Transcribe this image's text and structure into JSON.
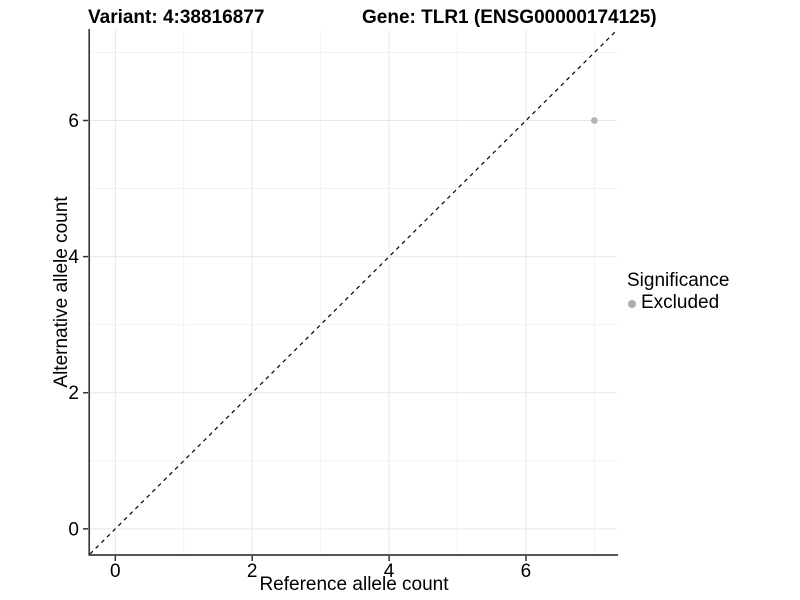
{
  "titles": {
    "variant": "Variant: 4:38816877",
    "gene": "Gene: TLR1 (ENSG00000174125)"
  },
  "chart_data": {
    "type": "scatter",
    "xlabel": "Reference allele count",
    "ylabel": "Alternative allele count",
    "xlim": [
      -0.37,
      7.33
    ],
    "ylim": [
      -0.37,
      7.33
    ],
    "xticks": [
      0,
      2,
      4,
      6
    ],
    "yticks": [
      0,
      2,
      4,
      6
    ],
    "xticks_minor": [
      1,
      3,
      5,
      7
    ],
    "yticks_minor": [
      1,
      3,
      5,
      7
    ],
    "grid": "major-and-minor",
    "reference_line": {
      "equation": "y = x",
      "style": "dashed",
      "color": "#000000"
    },
    "series": [
      {
        "name": "Excluded",
        "points": [
          {
            "x": 7,
            "y": 6
          }
        ],
        "color": "#b5b5b5"
      }
    ],
    "legend": {
      "title": "Significance",
      "position": "right",
      "items": [
        {
          "label": "Excluded",
          "color": "#adadad"
        }
      ]
    },
    "style": {
      "background": "#ffffff",
      "grid_major_color": "#e7e7e7",
      "grid_minor_color": "#f3f3f3",
      "axis_line_color": "#3c3c3c",
      "tick_color": "#333333",
      "text_color": "#000000",
      "point_color": "#b5b5b5"
    }
  }
}
